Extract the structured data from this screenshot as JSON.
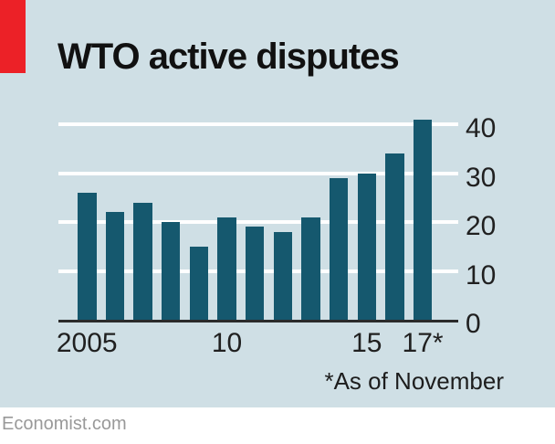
{
  "chart_data": {
    "type": "bar",
    "title": "WTO active disputes",
    "categories": [
      2005,
      2006,
      2007,
      2008,
      2009,
      2010,
      2011,
      2012,
      2013,
      2014,
      2015,
      2016,
      2017
    ],
    "values": [
      26,
      22,
      24,
      20,
      15,
      21,
      19,
      18,
      21,
      29,
      30,
      34,
      41
    ],
    "xlabel": "",
    "ylabel": "",
    "ylim": [
      0,
      40
    ],
    "yticks": [
      0,
      10,
      20,
      30,
      40
    ],
    "y_axis_side": "right",
    "grid": "horizontal white gridlines",
    "legend": "none",
    "xtick_labels": [
      {
        "label": "2005",
        "bar_index": 0
      },
      {
        "label": "10",
        "bar_index": 5
      },
      {
        "label": "15",
        "bar_index": 10
      },
      {
        "label": "17*",
        "bar_index": 12
      }
    ],
    "footnote": "*As of November",
    "colors": {
      "bar": "#15586e",
      "background": "#cfdfe5",
      "accent_red": "#ec2127",
      "gridline": "#ffffff",
      "axis_line": "#2b2b2b",
      "text": "#202020"
    }
  },
  "footer": {
    "source": "Economist.com"
  }
}
